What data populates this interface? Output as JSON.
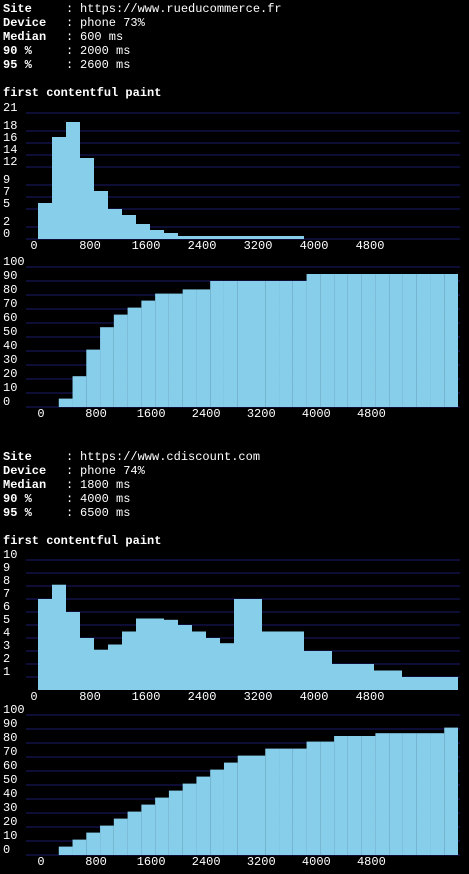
{
  "separator": ":",
  "reports": [
    {
      "rows": [
        {
          "label": "Site",
          "value": "https://www.rueducommerce.fr",
          "color": "#8cc8ec"
        },
        {
          "label": "Device",
          "value": "phone 73%",
          "color": "#8cc8ec"
        },
        {
          "label": "Median",
          "value": "600 ms",
          "color": "#3fb33f"
        },
        {
          "label": "90 %",
          "value": "2000 ms",
          "color": "#3fb33f"
        },
        {
          "label": "95 %",
          "value": "2600 ms",
          "color": "#3fb33f"
        }
      ]
    },
    {
      "rows": [
        {
          "label": "Site",
          "value": "https://www.cdiscount.com",
          "color": "#8cc8ec"
        },
        {
          "label": "Device",
          "value": "phone 74%",
          "color": "#8cc8ec"
        },
        {
          "label": "Median",
          "value": "1800 ms",
          "color": "#3fb33f"
        },
        {
          "label": "90 %",
          "value": "4000 ms",
          "color": "#3fb33f"
        },
        {
          "label": "95 %",
          "value": "6500 ms",
          "color": "#e8554e"
        }
      ]
    }
  ],
  "chart_data": [
    {
      "type": "histogram",
      "title": "first contentful paint",
      "color": "#87ceeb",
      "grid_color": "#1a1a6a",
      "bins": [
        0,
        200,
        400,
        600,
        800,
        1000,
        1200,
        1400,
        1600,
        1800,
        2000,
        2200,
        2400,
        2600,
        2800,
        3000,
        3200,
        3400,
        3600,
        3800,
        4000,
        4200,
        4400,
        4600,
        4800,
        5000,
        5200,
        5400,
        5600,
        5800,
        6000
      ],
      "values": [
        6,
        17,
        19.5,
        13.5,
        8,
        5,
        4,
        2.5,
        1.5,
        1,
        0.5,
        0.5,
        0.5,
        0.5,
        0.5,
        0.5,
        0.5,
        0.5,
        0.5,
        0,
        0,
        0,
        0,
        0,
        0,
        0,
        0,
        0,
        0,
        0
      ],
      "xlim": [
        0,
        6000
      ],
      "xticks": [
        0,
        800,
        1600,
        2400,
        3200,
        4000,
        4800
      ],
      "ylim": [
        0,
        21
      ],
      "yticks": [
        0,
        2,
        5,
        7,
        9,
        12,
        14,
        16,
        18,
        21
      ]
    },
    {
      "type": "histogram",
      "color": "#87ceeb",
      "grid_color": "#1a1a6a",
      "bins": [
        0,
        200,
        400,
        600,
        800,
        1000,
        1200,
        1400,
        1600,
        1800,
        2000,
        2200,
        2400,
        2600,
        2800,
        3000,
        3200,
        3400,
        3600,
        3800,
        4000,
        4200,
        4400,
        4600,
        4800,
        5000,
        5200,
        5400,
        5600,
        5800,
        6000
      ],
      "values": [
        0,
        6,
        22,
        41,
        57,
        66,
        71,
        76,
        81,
        81,
        84,
        84,
        90,
        90,
        90,
        90,
        90,
        90,
        90,
        95,
        95,
        95,
        95,
        95,
        95,
        95,
        95,
        95,
        95,
        95
      ],
      "xlim": [
        0,
        6000
      ],
      "xticks": [
        0,
        800,
        1600,
        2400,
        3200,
        4000,
        4800
      ],
      "ylim": [
        0,
        100
      ],
      "yticks": [
        0,
        10,
        20,
        30,
        40,
        50,
        60,
        70,
        80,
        90,
        100
      ]
    },
    {
      "type": "histogram",
      "title": "first contentful paint",
      "color": "#87ceeb",
      "grid_color": "#1a1a6a",
      "bins": [
        0,
        200,
        400,
        600,
        800,
        1000,
        1200,
        1400,
        1600,
        1800,
        2000,
        2200,
        2400,
        2600,
        2800,
        3000,
        3200,
        3400,
        3600,
        3800,
        4000,
        4200,
        4400,
        4600,
        4800,
        5000,
        5200,
        5400,
        5600,
        5800,
        6000
      ],
      "values": [
        7,
        8.1,
        6,
        4,
        3.1,
        3.5,
        4.5,
        5.5,
        5.5,
        5.4,
        5,
        4.5,
        4,
        3.6,
        7,
        7,
        4.5,
        4.5,
        4.5,
        3,
        3,
        2,
        2,
        2,
        1.5,
        1.5,
        1,
        1,
        1,
        1
      ],
      "xlim": [
        0,
        6000
      ],
      "xticks": [
        0,
        800,
        1600,
        2400,
        3200,
        4000,
        4800
      ],
      "ylim": [
        0,
        10
      ],
      "yticks": [
        1,
        2,
        3,
        4,
        5,
        6,
        7,
        8,
        9,
        10
      ]
    },
    {
      "type": "histogram",
      "color": "#87ceeb",
      "grid_color": "#1a1a6a",
      "bins": [
        0,
        200,
        400,
        600,
        800,
        1000,
        1200,
        1400,
        1600,
        1800,
        2000,
        2200,
        2400,
        2600,
        2800,
        3000,
        3200,
        3400,
        3600,
        3800,
        4000,
        4200,
        4400,
        4600,
        4800,
        5000,
        5200,
        5400,
        5600,
        5800,
        6000
      ],
      "values": [
        0,
        6,
        11,
        16,
        21,
        26,
        31,
        36,
        41,
        46,
        51,
        56,
        61,
        66,
        71,
        71,
        76,
        76,
        76,
        81,
        81,
        85,
        85,
        85,
        87,
        87,
        87,
        87,
        87,
        91
      ],
      "xlim": [
        0,
        6000
      ],
      "xticks": [
        0,
        800,
        1600,
        2400,
        3200,
        4000,
        4800
      ],
      "ylim": [
        0,
        100
      ],
      "yticks": [
        0,
        10,
        20,
        30,
        40,
        50,
        60,
        70,
        80,
        90,
        100
      ]
    }
  ]
}
